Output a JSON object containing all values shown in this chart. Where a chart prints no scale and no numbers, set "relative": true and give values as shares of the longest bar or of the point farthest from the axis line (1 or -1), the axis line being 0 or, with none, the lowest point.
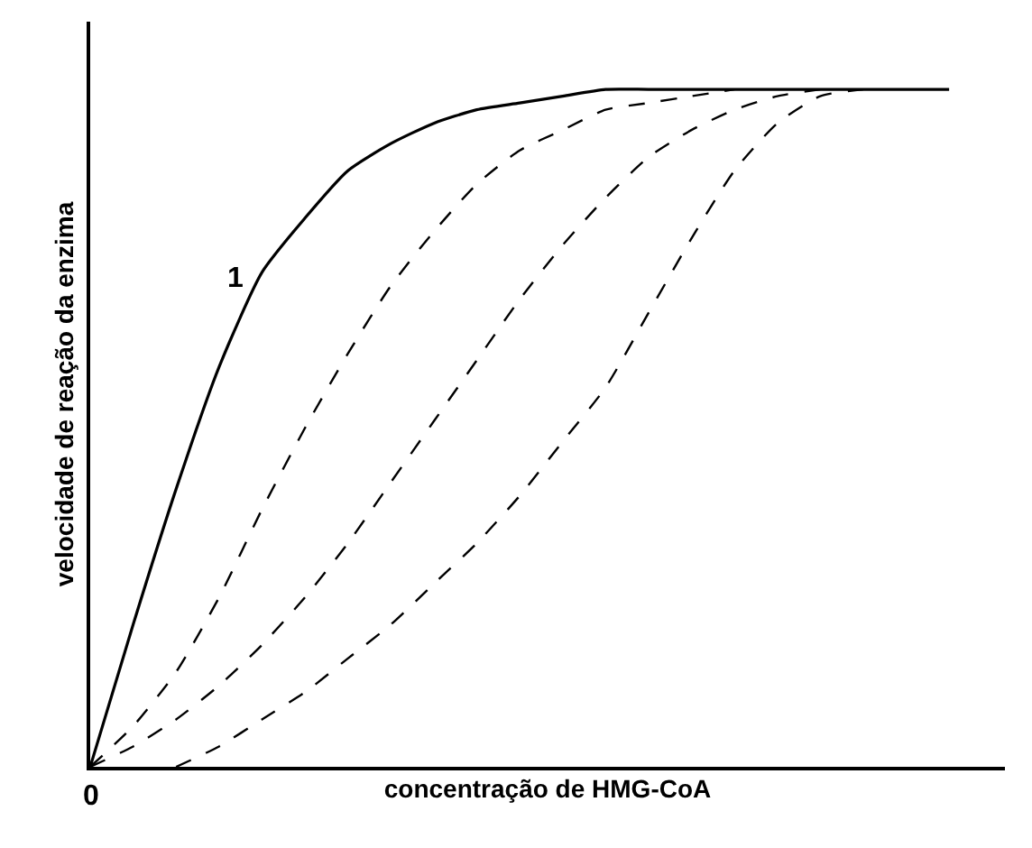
{
  "chart_data": {
    "type": "line",
    "relative": true,
    "xlabel": "concentração de HMG-CoA",
    "ylabel": "velocidade de reação da enzima",
    "categories": [
      null,
      null,
      null,
      null,
      null,
      null,
      null,
      null,
      null,
      null,
      null,
      null,
      null,
      null,
      null,
      null,
      null,
      null,
      null,
      null,
      null
    ],
    "series": [
      {
        "color": "#000000",
        "line_style": "solid",
        "values": [
          0,
          0.21,
          0.41,
          0.59,
          0.73,
          0.81,
          0.88,
          0.92,
          0.95,
          0.97,
          0.98,
          0.99,
          1,
          1,
          1,
          1,
          1,
          1,
          1,
          1,
          1
        ]
      },
      {
        "color": "#000000",
        "line_style": "dashed",
        "values": [
          0,
          0.06,
          0.14,
          0.25,
          0.38,
          0.5,
          0.61,
          0.71,
          0.79,
          0.86,
          0.91,
          0.94,
          0.97,
          0.98,
          0.99,
          1,
          null,
          null,
          null,
          null,
          null
        ]
      },
      {
        "color": "#000000",
        "line_style": "dashed",
        "values": [
          0,
          0.03,
          0.07,
          0.12,
          0.18,
          0.25,
          0.33,
          0.42,
          0.51,
          0.6,
          0.69,
          0.77,
          0.84,
          0.9,
          0.94,
          0.97,
          0.99,
          1,
          null,
          null,
          null
        ]
      },
      {
        "color": "#000000",
        "line_style": "dashed",
        "values": [
          null,
          null,
          0,
          0.03,
          0.07,
          0.11,
          0.16,
          0.21,
          0.27,
          0.33,
          0.4,
          0.48,
          0.56,
          0.67,
          0.78,
          0.88,
          0.95,
          0.99,
          1,
          null,
          null
        ]
      }
    ],
    "annotations": [
      "1",
      "0"
    ],
    "legend": false,
    "marker": "none"
  }
}
